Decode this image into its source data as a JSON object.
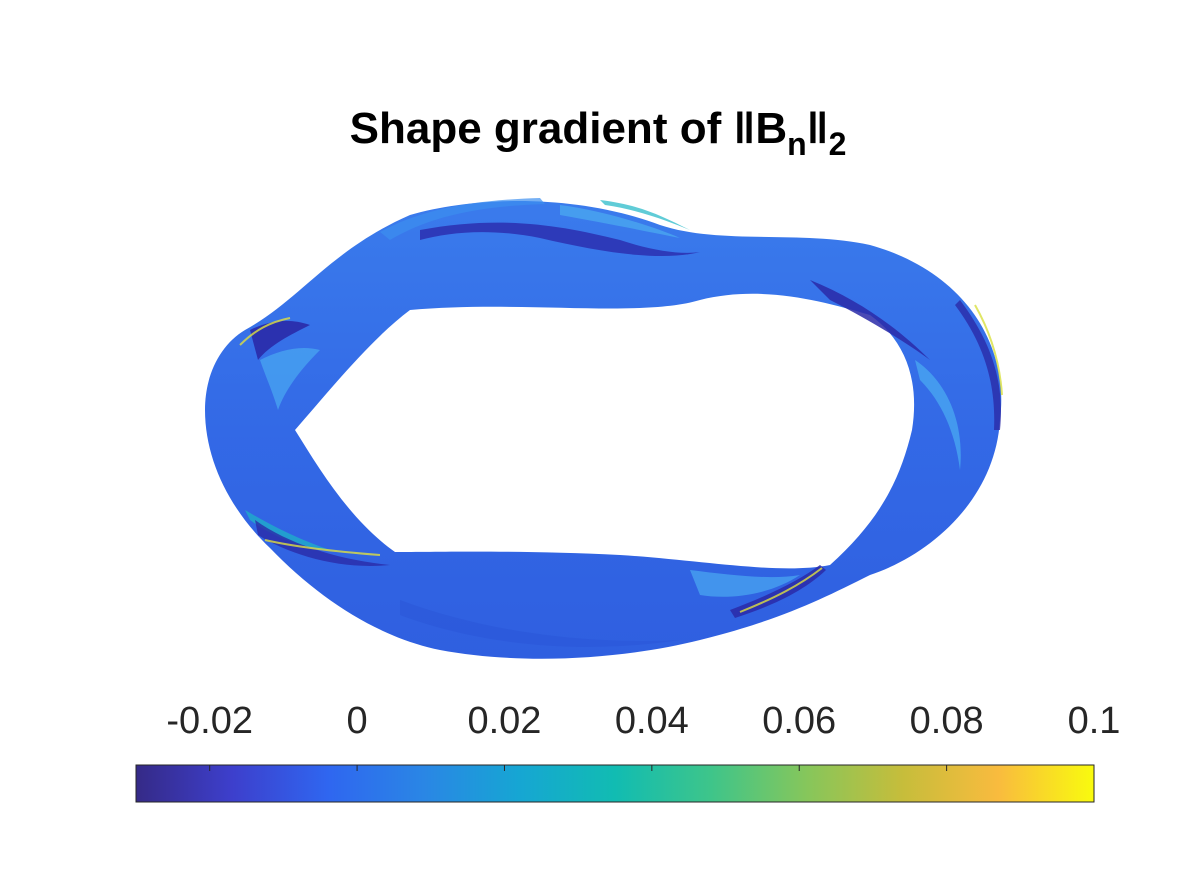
{
  "figure": {
    "title": {
      "prefix": "Shape gradient of ",
      "norm_open": "‖B",
      "subscript_n": "n",
      "norm_close": "‖",
      "subscript_2": "2"
    }
  },
  "colorbar": {
    "colormap": "parula",
    "min": -0.03,
    "max": 0.1,
    "ticks": [
      {
        "value": -0.02,
        "label": "-0.02"
      },
      {
        "value": 0,
        "label": "0"
      },
      {
        "value": 0.02,
        "label": "0.02"
      },
      {
        "value": 0.04,
        "label": "0.04"
      },
      {
        "value": 0.06,
        "label": "0.06"
      },
      {
        "value": 0.08,
        "label": "0.08"
      },
      {
        "value": 0.1,
        "label": "0.1"
      }
    ],
    "colors": [
      "#352a87",
      "#3d3fcc",
      "#2f66f0",
      "#2a86e5",
      "#16a6d3",
      "#11bcb2",
      "#3ec58a",
      "#86c65b",
      "#c6bd3b",
      "#f9bb3e",
      "#f9fb0e"
    ]
  },
  "surface": {
    "description_colors": {
      "base": "#3573e8",
      "dark": "#2a2aa8",
      "light": "#4aa8f0",
      "cyan": "#1cb8c8",
      "yellow": "#e8e840"
    }
  }
}
